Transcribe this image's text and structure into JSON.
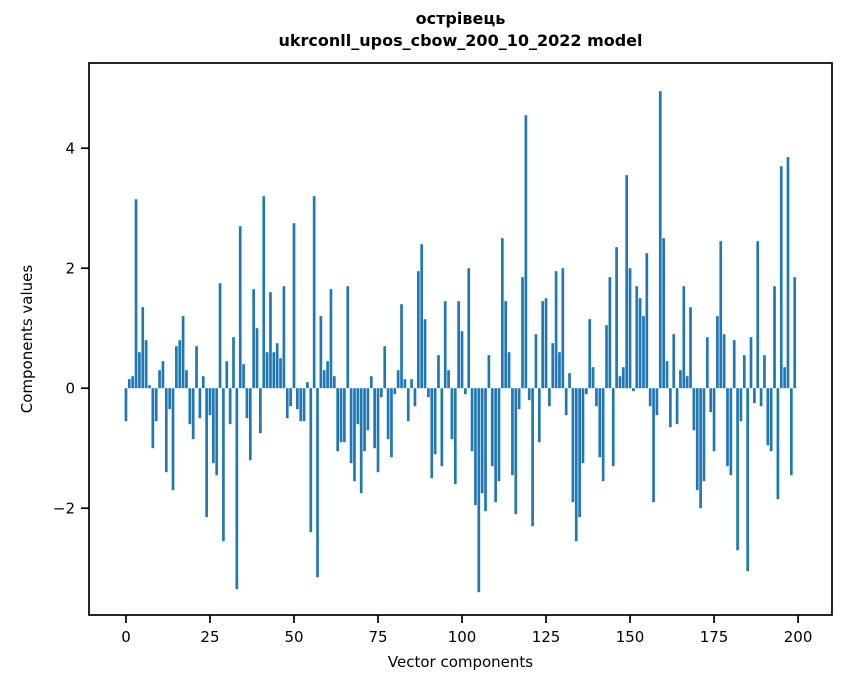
{
  "figure": {
    "background": "#ffffff",
    "spine_color": "#000000"
  },
  "chart_data": {
    "type": "bar",
    "title_lines": [
      "острівець",
      "ukrconll_upos_cbow_200_10_2022 model"
    ],
    "xlabel": "Vector components",
    "ylabel": "Components values",
    "bar_color": "#1f77b4",
    "bar_width": 0.8,
    "grid": false,
    "legend": null,
    "x_tick_values": [
      0,
      25,
      50,
      75,
      100,
      125,
      150,
      175,
      200
    ],
    "x_tick_labels": [
      "0",
      "25",
      "50",
      "75",
      "100",
      "125",
      "150",
      "175",
      "200"
    ],
    "y_tick_values": [
      -2,
      0,
      2,
      4
    ],
    "y_tick_labels": [
      "−2",
      "0",
      "2",
      "4"
    ],
    "xlim": [
      -11.0,
      210.1
    ],
    "ylim": [
      -3.78,
      5.42
    ],
    "x_is_index": true,
    "values": [
      -0.55,
      0.15,
      0.2,
      3.15,
      0.6,
      1.35,
      0.8,
      0.05,
      -1.0,
      -0.55,
      0.3,
      0.45,
      -1.4,
      -0.35,
      -1.7,
      0.7,
      0.8,
      1.2,
      0.3,
      -0.6,
      -0.85,
      0.7,
      -0.5,
      0.2,
      -2.15,
      -0.45,
      -1.25,
      -1.45,
      1.75,
      -2.55,
      0.45,
      -0.6,
      0.85,
      -3.35,
      2.7,
      0.4,
      -0.5,
      -1.2,
      1.65,
      1.0,
      -0.75,
      3.2,
      0.6,
      1.6,
      0.6,
      0.75,
      0.5,
      1.7,
      -0.5,
      -0.3,
      2.75,
      -0.35,
      -0.55,
      -0.55,
      0.1,
      -2.4,
      3.2,
      -3.15,
      1.2,
      0.3,
      0.45,
      1.65,
      0.2,
      -1.05,
      -0.9,
      -0.9,
      1.7,
      -1.25,
      -1.55,
      -0.6,
      -1.75,
      -1.05,
      -0.7,
      0.2,
      -1.0,
      -1.4,
      -0.15,
      0.7,
      -0.85,
      -1.15,
      -0.1,
      0.3,
      1.4,
      0.15,
      -0.55,
      0.15,
      -0.3,
      1.95,
      2.4,
      1.15,
      -0.15,
      -1.5,
      -1.1,
      0.55,
      -1.3,
      1.45,
      0.3,
      -0.85,
      -1.6,
      1.45,
      0.95,
      -0.1,
      2.0,
      -1.05,
      -1.95,
      -3.4,
      -1.75,
      -2.05,
      0.55,
      -1.3,
      -1.9,
      -1.55,
      2.5,
      1.45,
      0.6,
      -1.45,
      -2.1,
      -0.35,
      1.85,
      4.55,
      -0.2,
      -2.3,
      0.9,
      -0.9,
      1.45,
      1.5,
      -0.3,
      0.75,
      1.95,
      0.6,
      2.0,
      -0.45,
      0.25,
      -1.9,
      -2.55,
      -2.15,
      -1.25,
      -0.1,
      1.15,
      0.35,
      -0.3,
      -1.15,
      -1.55,
      1.05,
      1.85,
      -1.3,
      2.35,
      0.2,
      0.35,
      3.55,
      2.0,
      -0.05,
      1.7,
      1.5,
      1.2,
      2.25,
      -0.3,
      -1.9,
      -0.45,
      4.95,
      2.5,
      0.45,
      -0.65,
      0.9,
      -0.6,
      0.3,
      1.7,
      0.2,
      1.35,
      -0.7,
      -1.7,
      -2.0,
      -1.55,
      0.85,
      -0.4,
      -1.05,
      1.2,
      2.45,
      0.9,
      -1.3,
      -1.45,
      0.8,
      -2.7,
      -0.55,
      0.55,
      -3.05,
      0.85,
      -0.25,
      2.45,
      -0.3,
      0.55,
      -0.95,
      -1.05,
      1.7,
      -1.85,
      3.7,
      0.35,
      3.85,
      -1.45,
      1.85
    ]
  }
}
